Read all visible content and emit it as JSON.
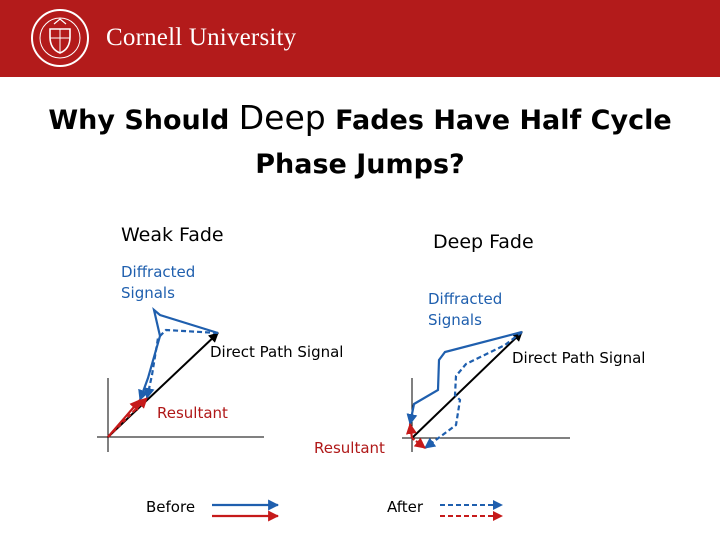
{
  "header": {
    "brand": "Cornell University",
    "seal_text": "CORNELL UNIVERSITY FOUNDED A.D. 1865",
    "colors": {
      "header_bg": "#b31b1b",
      "text": "#ffffff"
    }
  },
  "slide": {
    "title_part1": "Why Should ",
    "title_big": "Deep",
    "title_part2": " Fades Have Half Cycle",
    "title_line2": "Phase Jumps?"
  },
  "weak_fade": {
    "heading": "Weak Fade",
    "diffracted_line1": "Diffracted",
    "diffracted_line2": "Signals",
    "direct_label": "Direct Path Signal",
    "resultant_label": "Resultant"
  },
  "deep_fade": {
    "heading": "Deep Fade",
    "diffracted_line1": "Diffracted",
    "diffracted_line2": "Signals",
    "direct_label": "Direct Path Signal",
    "resultant_label": "Resultant"
  },
  "legend": {
    "before_label": "Before",
    "after_label": "After"
  },
  "colors": {
    "before_blue": "#1f5fae",
    "resultant_red": "#c61a1a",
    "axis": "#000000"
  }
}
